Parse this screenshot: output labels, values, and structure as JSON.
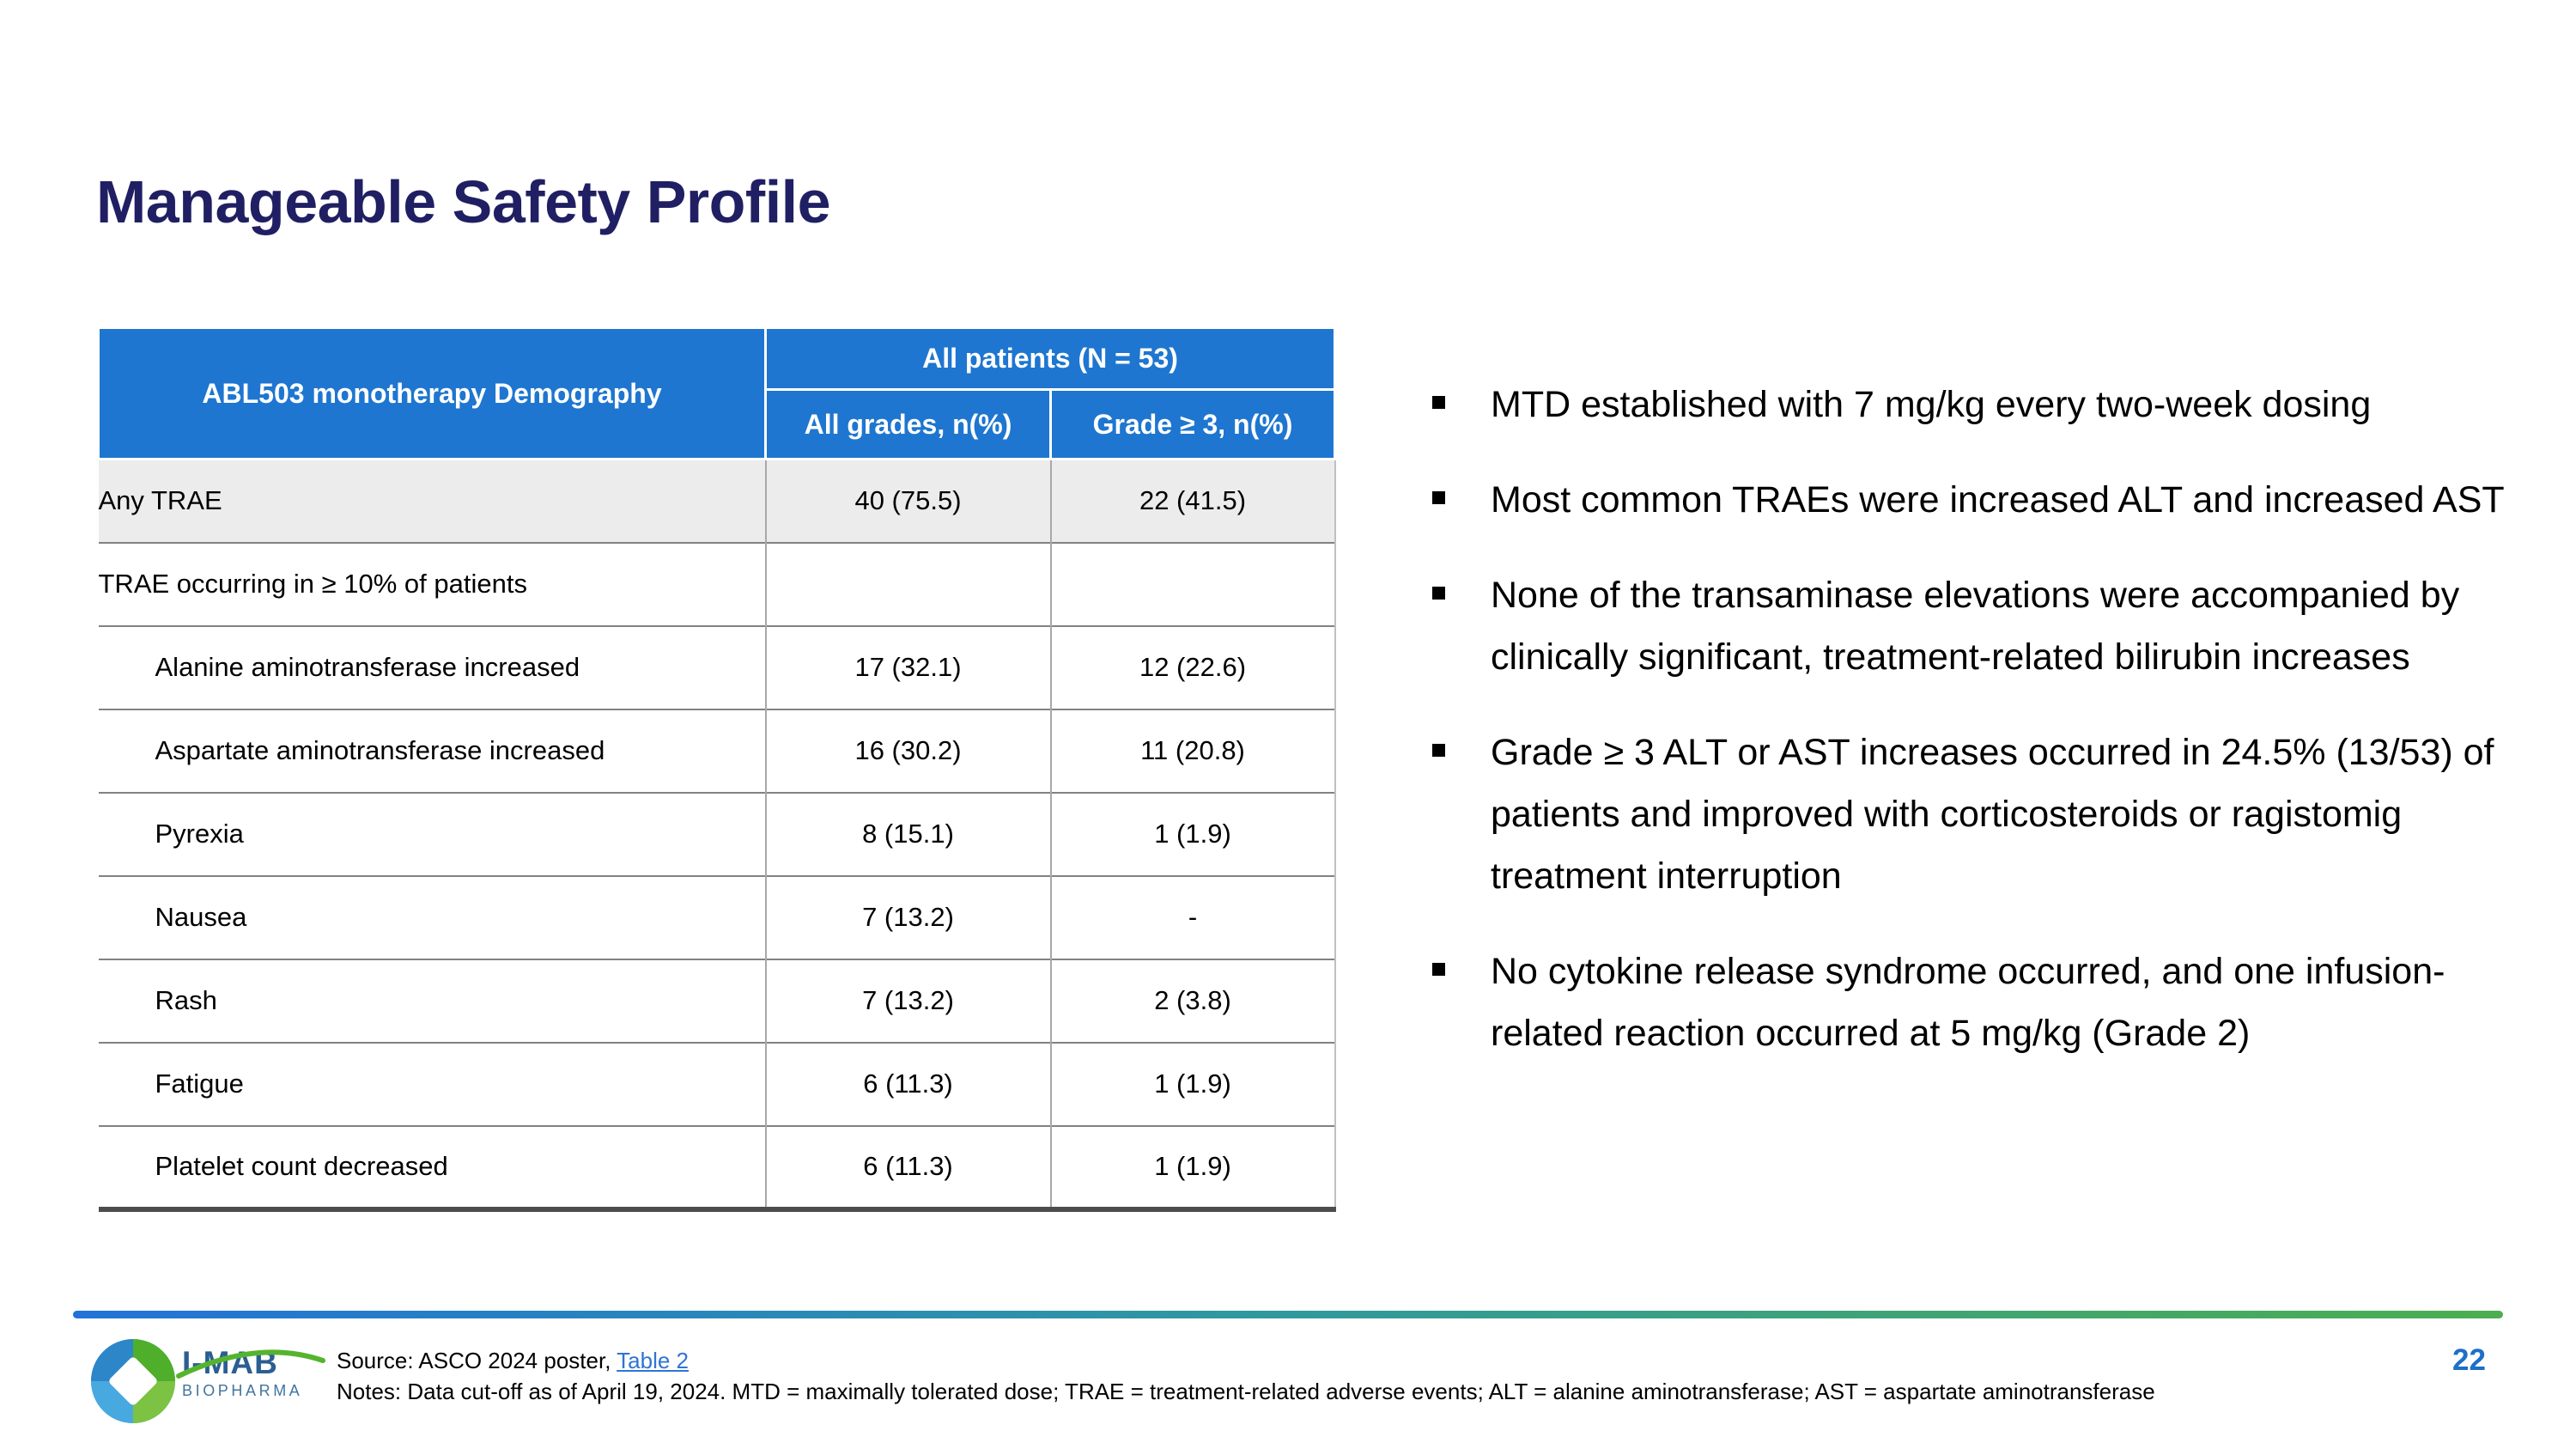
{
  "slide": {
    "title": "Manageable Safety Profile",
    "page_number": "22"
  },
  "table": {
    "header": {
      "col1": "ABL503 monotherapy Demography",
      "group": "All patients (N = 53)",
      "col2": "All grades, n(%)",
      "col3": "Grade ≥ 3, n(%)"
    },
    "rows": [
      {
        "label": "Any TRAE",
        "all_grades": "40 (75.5)",
        "grade3": "22 (41.5)",
        "indent": false,
        "shaded": true
      },
      {
        "label": "TRAE occurring in ≥ 10% of patients",
        "all_grades": "",
        "grade3": "",
        "indent": false,
        "shaded": false
      },
      {
        "label": "Alanine aminotransferase increased",
        "all_grades": "17 (32.1)",
        "grade3": "12 (22.6)",
        "indent": true,
        "shaded": false
      },
      {
        "label": "Aspartate aminotransferase increased",
        "all_grades": "16 (30.2)",
        "grade3": "11 (20.8)",
        "indent": true,
        "shaded": false
      },
      {
        "label": "Pyrexia",
        "all_grades": "8 (15.1)",
        "grade3": "1 (1.9)",
        "indent": true,
        "shaded": false
      },
      {
        "label": "Nausea",
        "all_grades": "7 (13.2)",
        "grade3": "-",
        "indent": true,
        "shaded": false
      },
      {
        "label": "Rash",
        "all_grades": "7 (13.2)",
        "grade3": "2 (3.8)",
        "indent": true,
        "shaded": false
      },
      {
        "label": "Fatigue",
        "all_grades": "6 (11.3)",
        "grade3": "1 (1.9)",
        "indent": true,
        "shaded": false
      },
      {
        "label": "Platelet count decreased",
        "all_grades": "6 (11.3)",
        "grade3": "1 (1.9)",
        "indent": true,
        "shaded": false
      }
    ]
  },
  "bullets": [
    "MTD established with 7 mg/kg every two-week dosing",
    "Most common TRAEs were increased ALT and increased AST",
    "None of the transaminase elevations were accompanied by clinically significant, treatment-related bilirubin increases",
    "Grade ≥ 3 ALT or AST increases occurred in 24.5% (13/53) of patients and improved with corticosteroids or ragistomig treatment interruption",
    "No cytokine release syndrome occurred, and one infusion-related reaction occurred at 5 mg/kg (Grade 2)"
  ],
  "footer": {
    "logo_primary": "I-MAB",
    "logo_secondary": "BIOPHARMA",
    "source_prefix": "Source: ASCO 2024 poster, ",
    "source_link": "Table 2",
    "notes": "Notes: Data cut-off as of April 19, 2024. MTD = maximally tolerated dose; TRAE = treatment-related adverse events; ALT = alanine aminotransferase; AST = aspartate aminotransferase"
  },
  "colors": {
    "header_blue": "#1E76D0",
    "title_navy": "#201F63",
    "row_shaded": "#ECECEC",
    "accent_blue": "#2272D8",
    "accent_green": "#4CAE4F",
    "link_blue": "#2E74D5",
    "page_blue": "#1D6FC8"
  }
}
